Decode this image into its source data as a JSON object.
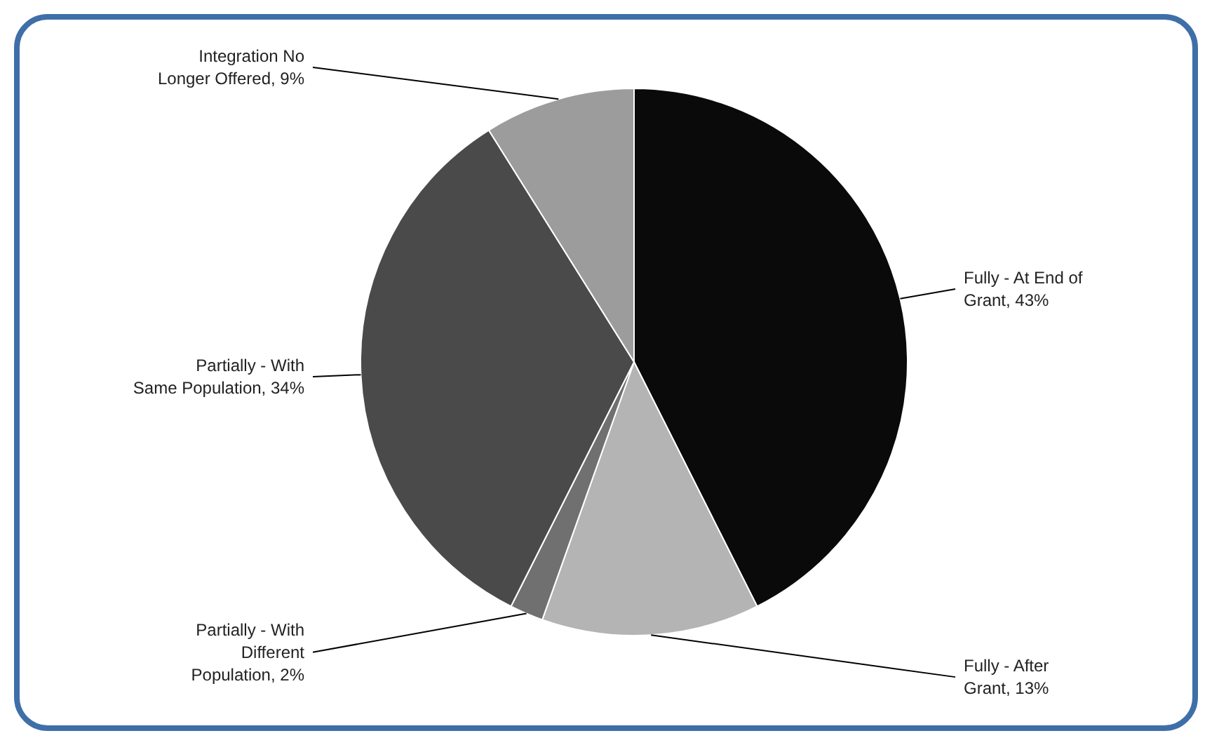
{
  "chart_data": {
    "type": "pie",
    "categories": [
      "Fully - At End of Grant",
      "Fully - After Grant",
      "Partially - With Different Population",
      "Partially - With Same Population",
      "Integration No Longer Offered"
    ],
    "values": [
      43,
      13,
      2,
      34,
      9
    ],
    "value_labels": [
      "43%",
      "13%",
      "2%",
      "34%",
      "9%"
    ],
    "colors": [
      "#0a0a0a",
      "#b4b4b4",
      "#707070",
      "#4a4a4a",
      "#9c9c9c"
    ]
  }
}
